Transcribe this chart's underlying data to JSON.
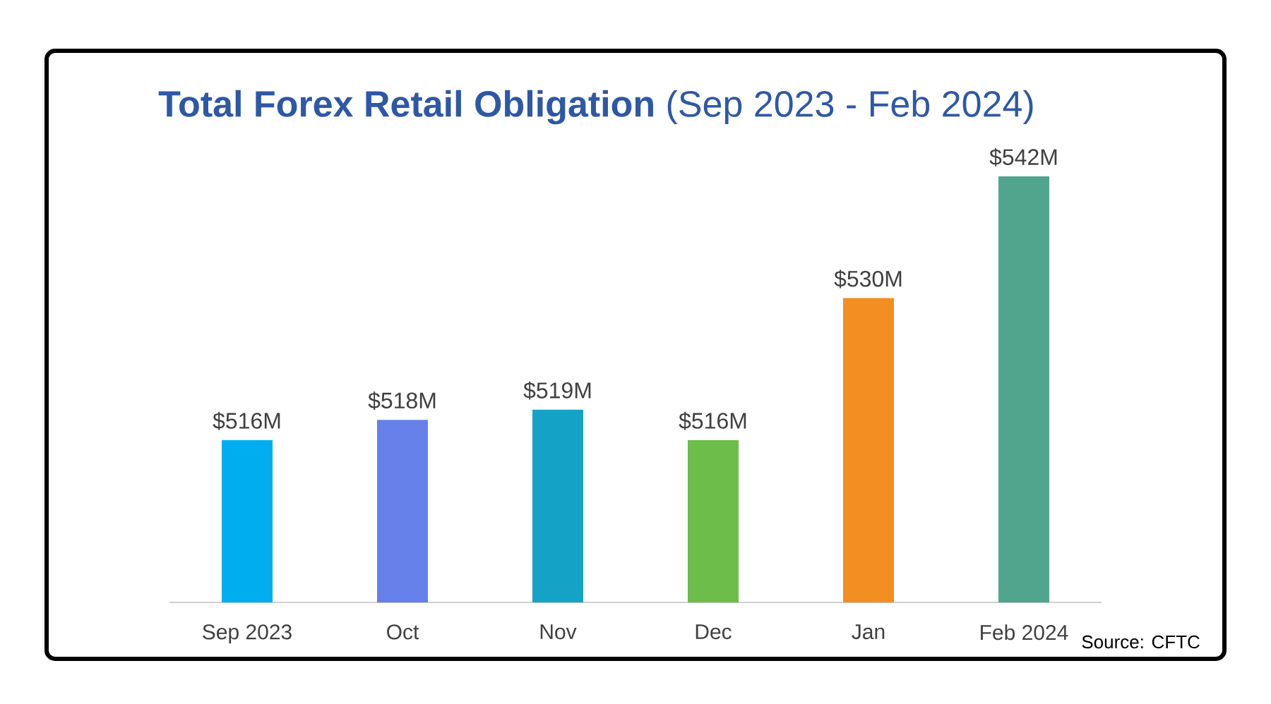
{
  "chart_data": {
    "type": "bar",
    "title": "**Total Forex Retail Obligation** (Sep 2023 - Feb 2024)",
    "categories": [
      "Sep 2023",
      "Oct",
      "Nov",
      "Dec",
      "Jan",
      "Feb 2024"
    ],
    "values": [
      516,
      518,
      519,
      516,
      530,
      542
    ],
    "colors": [
      "#00aeef",
      "#6680ea",
      "#14a3c7",
      "#6cbd4a",
      "#f28e22",
      "#52a58d"
    ],
    "value_labels": [
      "$516M",
      "$518M",
      "$519M",
      "$516M",
      "$530M",
      "$542M"
    ],
    "ylim": [
      500,
      542
    ],
    "tick_labels": "x",
    "annotations": [
      "Source: CFTC"
    ]
  }
}
